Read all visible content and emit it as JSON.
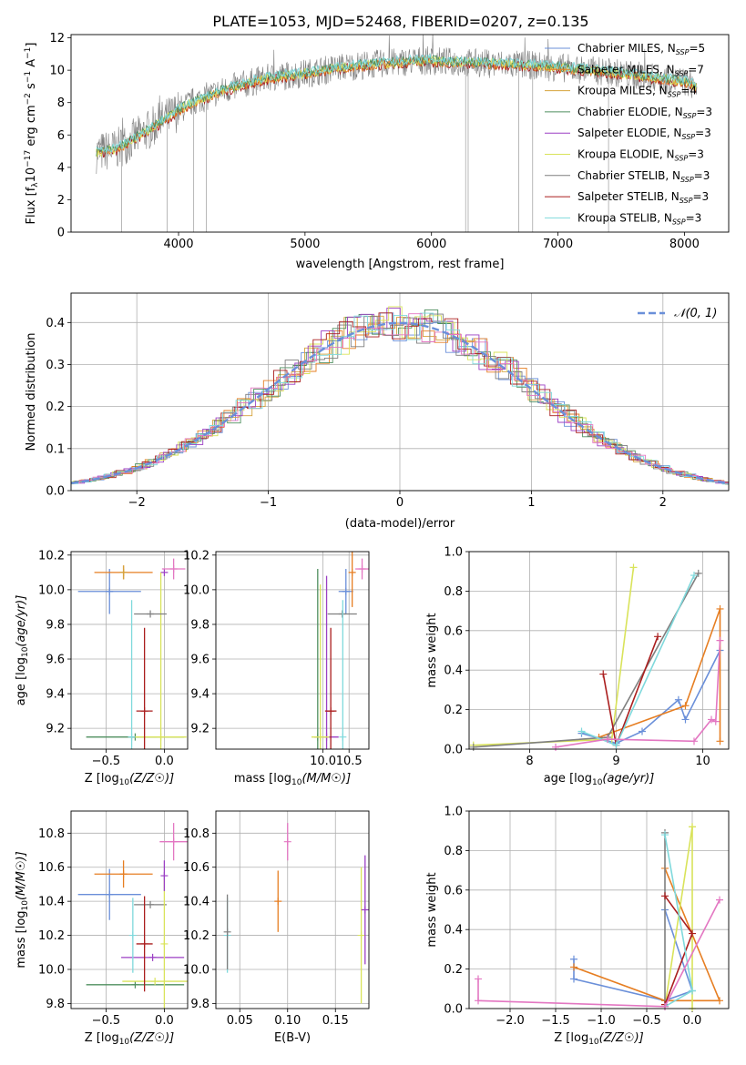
{
  "figure": {
    "title": "PLATE=1053, MJD=52468, FIBERID=0207, z=0.135",
    "colors": {
      "Chabrier MILES": "#6a8fd9",
      "Salpeter MILES": "#e67e22",
      "Kroupa MILES": "#d6a33c",
      "Chabrier ELODIE": "#4f8f5f",
      "Salpeter ELODIE": "#9b3fc4",
      "Kroupa ELODIE": "#d9e35a",
      "Chabrier STELIB": "#7f7f7f",
      "Salpeter STELIB": "#aa1e1e",
      "Kroupa STELIB": "#7fd9dc",
      "pink": "#e377c2"
    }
  },
  "chart_data": [
    {
      "id": "spectrum",
      "type": "line",
      "title": "PLATE=1053, MJD=52468, FIBERID=0207, z=0.135",
      "xlabel": "wavelength [Angstrom, rest frame]",
      "ylabel": "Flux [f",
      "ylabel_unit": "10",
      "xlim": [
        3150,
        8350
      ],
      "ylim": [
        0,
        12.2
      ],
      "xticks": [
        4000,
        5000,
        6000,
        7000,
        8000
      ],
      "yticks": [
        0,
        2,
        4,
        6,
        8,
        10,
        12
      ],
      "legend_position": "right",
      "legend": [
        {
          "name": "Chabrier MILES",
          "n": "5"
        },
        {
          "name": "Salpeter MILES",
          "n": "7"
        },
        {
          "name": "Kroupa MILES",
          "n": "4"
        },
        {
          "name": "Chabrier ELODIE",
          "n": "3"
        },
        {
          "name": "Salpeter ELODIE",
          "n": "3"
        },
        {
          "name": "Kroupa ELODIE",
          "n": "3"
        },
        {
          "name": "Chabrier STELIB",
          "n": "3"
        },
        {
          "name": "Salpeter STELIB",
          "n": "3"
        },
        {
          "name": "Kroupa STELIB",
          "n": "3"
        }
      ],
      "continuum": {
        "wavelength": [
          3350,
          3500,
          3700,
          3900,
          4100,
          4300,
          4500,
          4700,
          5000,
          5300,
          5600,
          5900,
          6200,
          6500,
          6800,
          7100,
          7400,
          7700,
          8000,
          8100
        ],
        "flux": [
          4.9,
          5.1,
          6.0,
          7.0,
          8.0,
          8.6,
          9.1,
          9.5,
          9.8,
          10.2,
          10.4,
          10.6,
          10.5,
          10.4,
          10.3,
          10.1,
          9.9,
          9.6,
          9.3,
          9.0
        ]
      },
      "drops": [
        3550,
        3910,
        4120,
        4220,
        6270,
        6290,
        6690,
        6800,
        7400
      ]
    },
    {
      "id": "residuals",
      "type": "area",
      "xlabel": "(data-model)/error",
      "ylabel": "Normed distribution",
      "xlim": [
        -2.5,
        2.5
      ],
      "ylim": [
        0,
        0.47
      ],
      "xticks": [
        -2,
        -1,
        0,
        1,
        2
      ],
      "yticks": [
        0,
        0.1,
        0.2,
        0.3,
        0.4
      ],
      "grid": true,
      "legend_position": "top-right",
      "normal_label": "𝒩(0, 1)",
      "normal_mean": 0,
      "normal_sigma": 1
    },
    {
      "id": "age_vs_z",
      "type": "scatter",
      "xlabel": "Z [log",
      "ylabel": "age  [log",
      "xlim": [
        -0.8,
        0.2
      ],
      "ylim": [
        9.08,
        10.22
      ],
      "xticks": [
        -0.5,
        0.0
      ],
      "yticks": [
        9.2,
        9.4,
        9.6,
        9.8,
        10.0,
        10.2
      ],
      "grid": true,
      "points": [
        {
          "series": "Chabrier MILES",
          "x": -0.47,
          "y": 9.99,
          "xerr": 0.27,
          "yerr": 0.13
        },
        {
          "series": "Salpeter MILES",
          "x": -0.35,
          "y": 10.1,
          "xerr": 0.25,
          "yerr": 0.04
        },
        {
          "series": "Kroupa MILES",
          "x": -0.35,
          "y": 10.1,
          "xerr": 0.0,
          "yerr": 0.04
        },
        {
          "series": "Chabrier ELODIE",
          "x": -0.25,
          "y": 9.15,
          "xerr": 0.42,
          "yerr": 0.0
        },
        {
          "series": "Salpeter ELODIE",
          "x": 0.0,
          "y": 10.1,
          "xerr": 0.0,
          "yerr": 0.0
        },
        {
          "series": "Kroupa ELODIE",
          "x": -0.03,
          "y": 9.15,
          "xerr": 0.22,
          "yerr": 0.95
        },
        {
          "series": "Chabrier STELIB",
          "x": -0.12,
          "y": 9.86,
          "xerr": 0.14,
          "yerr": 0.0
        },
        {
          "series": "Salpeter STELIB",
          "x": -0.17,
          "y": 9.3,
          "xerr": 0.07,
          "yerr": 0.48
        },
        {
          "series": "Kroupa STELIB",
          "x": -0.28,
          "y": 9.15,
          "xerr": 0.0,
          "yerr": 0.79
        },
        {
          "series": "pink",
          "x": 0.08,
          "y": 10.12,
          "xerr": 0.1,
          "yerr": 0.06
        }
      ]
    },
    {
      "id": "age_vs_mass",
      "type": "scatter",
      "xlabel": "mass [log",
      "ylabel": "",
      "xlim": [
        7.95,
        10.88
      ],
      "ylim": [
        9.08,
        10.22
      ],
      "xticks": [
        10.0,
        10.5
      ],
      "yticks": [
        9.2,
        9.4,
        9.6,
        9.8,
        10.0,
        10.2
      ],
      "grid": true,
      "points": [
        {
          "series": "Chabrier MILES",
          "x": 10.44,
          "y": 9.99,
          "xerr": 0.14,
          "yerr": 0.13
        },
        {
          "series": "Salpeter MILES",
          "x": 10.56,
          "y": 10.1,
          "xerr": 0.0,
          "yerr": 0.2
        },
        {
          "series": "Chabrier ELODIE",
          "x": 9.9,
          "y": 9.15,
          "xerr": 0.0,
          "yerr": 0.97
        },
        {
          "series": "Salpeter ELODIE",
          "x": 10.07,
          "y": 9.15,
          "xerr": 0.23,
          "yerr": 0.93
        },
        {
          "series": "Kroupa ELODIE",
          "x": 9.95,
          "y": 9.15,
          "xerr": 0.17,
          "yerr": 0.88
        },
        {
          "series": "Chabrier STELIB",
          "x": 10.37,
          "y": 9.86,
          "xerr": 0.28,
          "yerr": 0.0
        },
        {
          "series": "Salpeter STELIB",
          "x": 10.15,
          "y": 9.3,
          "xerr": 0.11,
          "yerr": 0.48
        },
        {
          "series": "Kroupa STELIB",
          "x": 10.38,
          "y": 9.15,
          "xerr": 0.0,
          "yerr": 0.79
        },
        {
          "series": "pink",
          "x": 10.75,
          "y": 10.12,
          "xerr": 0.13,
          "yerr": 0.06
        }
      ]
    },
    {
      "id": "mw_vs_age",
      "type": "line",
      "xlabel": "age  [log",
      "ylabel": "mass weight",
      "xlim": [
        7.3,
        10.3
      ],
      "ylim": [
        0,
        1.0
      ],
      "xticks": [
        8,
        9,
        10
      ],
      "yticks": [
        0.0,
        0.2,
        0.4,
        0.6,
        0.8,
        1.0
      ],
      "grid": true,
      "series": [
        {
          "name": "Chabrier MILES",
          "x": [
            8.6,
            9.0,
            9.3,
            9.72,
            9.8,
            10.2
          ],
          "y": [
            0.08,
            0.03,
            0.09,
            0.25,
            0.15,
            0.5
          ]
        },
        {
          "name": "Salpeter MILES",
          "x": [
            8.8,
            9.8,
            10.2,
            10.2
          ],
          "y": [
            0.06,
            0.22,
            0.71,
            0.04
          ]
        },
        {
          "name": "Kroupa ELODIE",
          "x": [
            7.35,
            8.95,
            9.2
          ],
          "y": [
            0.02,
            0.05,
            0.92
          ]
        },
        {
          "name": "Chabrier STELIB",
          "x": [
            7.35,
            8.9,
            9.95
          ],
          "y": [
            0.01,
            0.06,
            0.89
          ]
        },
        {
          "name": "Salpeter STELIB",
          "x": [
            8.85,
            9.0,
            9.48
          ],
          "y": [
            0.38,
            0.02,
            0.57
          ]
        },
        {
          "name": "Kroupa STELIB",
          "x": [
            8.6,
            9.0,
            9.9
          ],
          "y": [
            0.09,
            0.02,
            0.88
          ]
        },
        {
          "name": "pink",
          "x": [
            8.3,
            8.9,
            9.9,
            10.1,
            10.15,
            10.2
          ],
          "y": [
            0.01,
            0.05,
            0.04,
            0.15,
            0.14,
            0.55
          ]
        }
      ]
    },
    {
      "id": "mass_vs_z",
      "type": "scatter",
      "xlabel": "Z [log",
      "ylabel": "mass [log",
      "xlim": [
        -0.8,
        0.2
      ],
      "ylim": [
        9.77,
        10.93
      ],
      "xticks": [
        -0.5,
        0.0
      ],
      "yticks": [
        9.8,
        10.0,
        10.2,
        10.4,
        10.6,
        10.8
      ],
      "grid": true,
      "points": [
        {
          "series": "Chabrier MILES",
          "x": -0.47,
          "y": 10.44,
          "xerr": 0.27,
          "yerr": 0.15
        },
        {
          "series": "Salpeter MILES",
          "x": -0.35,
          "y": 10.56,
          "xerr": 0.25,
          "yerr": 0.08
        },
        {
          "series": "Chabrier ELODIE",
          "x": -0.25,
          "y": 9.91,
          "xerr": 0.42,
          "yerr": 0.0
        },
        {
          "series": "Salpeter ELODIE",
          "x": -0.1,
          "y": 10.07,
          "xerr": 0.27,
          "yerr": 0.0
        },
        {
          "series": "Kroupa ELODIE",
          "x": -0.08,
          "y": 9.93,
          "xerr": 0.28,
          "yerr": 0.0
        },
        {
          "series": "Chabrier STELIB",
          "x": -0.12,
          "y": 10.38,
          "xerr": 0.14,
          "yerr": 0.0
        },
        {
          "series": "Salpeter STELIB",
          "x": -0.17,
          "y": 10.15,
          "xerr": 0.07,
          "yerr": 0.28
        },
        {
          "series": "Kroupa STELIB",
          "x": -0.27,
          "y": 10.2,
          "xerr": 0.0,
          "yerr": 0.22
        },
        {
          "series": "Kroupa ELODIE",
          "x": 0.0,
          "y": 10.15,
          "xerr": 0.0,
          "yerr": 0.38
        },
        {
          "series": "Salpeter ELODIE",
          "x": 0.0,
          "y": 10.55,
          "xerr": 0.0,
          "yerr": 0.09
        },
        {
          "series": "pink",
          "x": 0.08,
          "y": 10.75,
          "xerr": 0.12,
          "yerr": 0.11
        }
      ]
    },
    {
      "id": "mass_vs_ebv",
      "type": "scatter",
      "xlabel": "E(B-V)",
      "ylabel": "",
      "xlim": [
        0.025,
        0.185
      ],
      "ylim": [
        9.77,
        10.93
      ],
      "xticks": [
        0.05,
        0.1,
        0.15
      ],
      "yticks": [
        9.8,
        10.0,
        10.2,
        10.4,
        10.6,
        10.8
      ],
      "grid": true,
      "points": [
        {
          "series": "Kroupa STELIB",
          "x": 0.037,
          "y": 10.2,
          "xerr": 0.0,
          "yerr": 0.22
        },
        {
          "series": "Chabrier STELIB",
          "x": 0.037,
          "y": 10.22,
          "xerr": 0.0,
          "yerr": 0.22
        },
        {
          "series": "Salpeter MILES",
          "x": 0.09,
          "y": 10.4,
          "xerr": 0.0,
          "yerr": 0.18
        },
        {
          "series": "pink",
          "x": 0.1,
          "y": 10.75,
          "xerr": 0.0,
          "yerr": 0.11
        },
        {
          "series": "Kroupa ELODIE",
          "x": 0.177,
          "y": 10.2,
          "xerr": 0.0,
          "yerr": 0.4
        },
        {
          "series": "Salpeter ELODIE",
          "x": 0.181,
          "y": 10.35,
          "xerr": 0.0,
          "yerr": 0.32
        }
      ]
    },
    {
      "id": "mw_vs_z",
      "type": "line",
      "xlabel": "Z [log",
      "ylabel": "mass weight",
      "xlim": [
        -2.45,
        0.4
      ],
      "ylim": [
        0,
        1.0
      ],
      "xticks": [
        -2.0,
        -1.5,
        -1.0,
        -0.5,
        0.0
      ],
      "yticks": [
        0.0,
        0.2,
        0.4,
        0.6,
        0.8,
        1.0
      ],
      "grid": true,
      "series": [
        {
          "name": "Chabrier MILES",
          "x": [
            -1.3,
            -1.3,
            -0.3,
            0.0,
            -0.3
          ],
          "y": [
            0.25,
            0.15,
            0.04,
            0.09,
            0.5
          ]
        },
        {
          "name": "Salpeter MILES",
          "x": [
            -1.3,
            -0.3,
            0.3,
            -0.3
          ],
          "y": [
            0.21,
            0.04,
            0.04,
            0.71
          ]
        },
        {
          "name": "Kroupa ELODIE",
          "x": [
            -0.3,
            0.0,
            0.0,
            0.0
          ],
          "y": [
            0.01,
            0.92,
            0.92,
            0.0
          ]
        },
        {
          "name": "Chabrier STELIB",
          "x": [
            -0.3,
            -0.3
          ],
          "y": [
            0.89,
            0.01
          ]
        },
        {
          "name": "Salpeter STELIB",
          "x": [
            -0.3,
            0.0,
            -0.3
          ],
          "y": [
            0.02,
            0.38,
            0.57
          ]
        },
        {
          "name": "Kroupa STELIB",
          "x": [
            -0.3,
            0.0,
            -0.3
          ],
          "y": [
            0.01,
            0.09,
            0.88
          ]
        },
        {
          "name": "pink",
          "x": [
            -2.35,
            -2.35,
            -0.3,
            0.3
          ],
          "y": [
            0.15,
            0.04,
            0.01,
            0.55
          ]
        }
      ]
    }
  ]
}
